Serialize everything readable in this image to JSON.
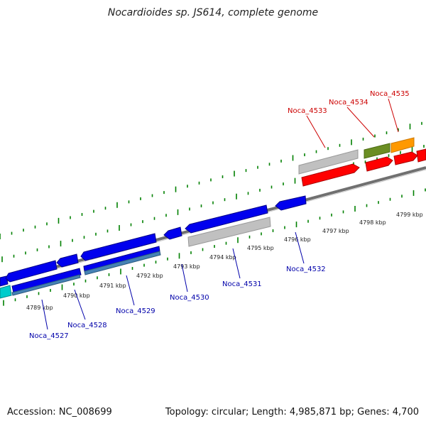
{
  "title": "Nocardioides sp. JS614, complete genome",
  "accession": "Accession: NC_008699",
  "topology": "Topology: circular; Length: 4,985,871 bp; Genes: 4,700",
  "colors": {
    "forward_gene": "#ff0000",
    "reverse_gene": "#0000ee",
    "pseudo_gene": "#c0c0c0",
    "olive_gene": "#6b8e23",
    "orange_gene": "#ff9900",
    "cyan_gene": "#00cccc",
    "backbone": "#808080",
    "tick": "#008000",
    "forward_label": "#cc0000",
    "reverse_label": "#0000aa"
  },
  "scale_ticks": [
    "4789 kbp",
    "4790 kbp",
    "4791 kbp",
    "4792 kbp",
    "4793 kbp",
    "4794 kbp",
    "4795 kbp",
    "4796 kbp",
    "4797 kbp",
    "4798 kbp",
    "4799 kbp"
  ],
  "forward_labels": [
    "Noca_4533",
    "Noca_4534",
    "Noca_4535"
  ],
  "reverse_labels": [
    "Noca_4527",
    "Noca_4528",
    "Noca_4529",
    "Noca_4530",
    "Noca_4531",
    "Noca_4532"
  ]
}
